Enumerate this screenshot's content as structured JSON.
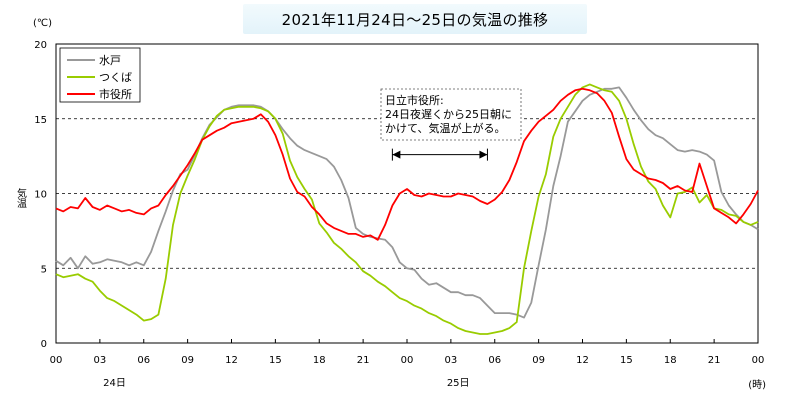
{
  "title": "2021年11月24日～25日の気温の推移",
  "chart_data": {
    "type": "line",
    "title": "2021年11月24日～25日の気温の推移",
    "ylabel": "気温",
    "yunit": "(℃)",
    "xunit": "(時)",
    "ylim": [
      0,
      20
    ],
    "yticks": [
      0,
      5,
      10,
      15,
      20
    ],
    "xlim": [
      0,
      48
    ],
    "xticks": [
      0,
      3,
      6,
      9,
      12,
      15,
      18,
      21,
      24,
      27,
      30,
      33,
      36,
      39,
      42,
      45,
      48
    ],
    "xtick_labels": [
      "00",
      "03",
      "06",
      "09",
      "12",
      "15",
      "18",
      "21",
      "00",
      "03",
      "06",
      "09",
      "12",
      "15",
      "18",
      "21",
      "00"
    ],
    "day_labels": [
      {
        "x": 4,
        "label": "24日"
      },
      {
        "x": 27.5,
        "label": "25日"
      }
    ],
    "grid": {
      "horizontal_dashed": [
        5,
        10,
        15
      ]
    },
    "legend_position": "top-left",
    "annotation": {
      "lines": [
        "日立市役所:",
        "24日夜遅くから25日朝に",
        "かけて、気温が上がる。"
      ],
      "arrow_from_x": 23,
      "arrow_to_x": 29.5,
      "arrow_y": 12.6
    },
    "series": [
      {
        "name": "水戸",
        "color": "#999999",
        "x": [
          0,
          0.5,
          1,
          1.5,
          2,
          2.5,
          3,
          3.5,
          4,
          4.5,
          5,
          5.5,
          6,
          6.5,
          7,
          7.5,
          8,
          8.5,
          9,
          9.5,
          10,
          10.5,
          11,
          11.5,
          12,
          12.5,
          13,
          13.5,
          14,
          14.5,
          15,
          15.5,
          16,
          16.5,
          17,
          17.5,
          18,
          18.5,
          19,
          19.5,
          20,
          20.5,
          21,
          21.5,
          22,
          22.5,
          23,
          23.5,
          24,
          24.5,
          25,
          25.5,
          26,
          26.5,
          27,
          27.5,
          28,
          28.5,
          29,
          29.5,
          30,
          30.5,
          31,
          31.5,
          32,
          32.5,
          33,
          33.5,
          34,
          34.5,
          35,
          35.5,
          36,
          36.5,
          37,
          37.5,
          38,
          38.5,
          39,
          39.5,
          40,
          40.5,
          41,
          41.5,
          42,
          42.5,
          43,
          43.5,
          44,
          44.5,
          45,
          45.5,
          46,
          46.5,
          47,
          47.5,
          48
        ],
        "values": [
          5.5,
          5.2,
          5.7,
          5.0,
          5.8,
          5.3,
          5.4,
          5.6,
          5.5,
          5.4,
          5.2,
          5.4,
          5.2,
          6.1,
          7.5,
          8.8,
          10.2,
          11.3,
          11.6,
          12.6,
          13.7,
          14.6,
          15.1,
          15.6,
          15.8,
          15.9,
          15.9,
          15.9,
          15.8,
          15.5,
          15.0,
          14.3,
          13.7,
          13.2,
          12.9,
          12.7,
          12.5,
          12.3,
          11.8,
          10.9,
          9.7,
          7.7,
          7.3,
          7.1,
          7.0,
          6.9,
          6.4,
          5.4,
          5.0,
          4.9,
          4.3,
          3.9,
          4.0,
          3.7,
          3.4,
          3.4,
          3.2,
          3.2,
          3.0,
          2.5,
          2.0,
          2.0,
          2.0,
          1.9,
          1.7,
          2.7,
          5.2,
          7.6,
          10.5,
          12.5,
          14.8,
          15.5,
          16.2,
          16.6,
          16.8,
          17.0,
          17.0,
          17.1,
          16.4,
          15.6,
          14.9,
          14.3,
          13.9,
          13.7,
          13.3,
          12.9,
          12.8,
          12.9,
          12.8,
          12.6,
          12.2,
          10.1,
          9.2,
          8.6,
          8.1,
          7.9,
          7.6
        ]
      },
      {
        "name": "つくば",
        "color": "#99cc00",
        "x": [
          0,
          0.5,
          1,
          1.5,
          2,
          2.5,
          3,
          3.5,
          4,
          4.5,
          5,
          5.5,
          6,
          6.5,
          7,
          7.5,
          8,
          8.5,
          9,
          9.5,
          10,
          10.5,
          11,
          11.5,
          12,
          12.5,
          13,
          13.5,
          14,
          14.5,
          15,
          15.5,
          16,
          16.5,
          17,
          17.5,
          18,
          18.5,
          19,
          19.5,
          20,
          20.5,
          21,
          21.5,
          22,
          22.5,
          23,
          23.5,
          24,
          24.5,
          25,
          25.5,
          26,
          26.5,
          27,
          27.5,
          28,
          28.5,
          29,
          29.5,
          30,
          30.5,
          31,
          31.5,
          32,
          32.5,
          33,
          33.5,
          34,
          34.5,
          35,
          35.5,
          36,
          36.5,
          37,
          37.5,
          38,
          38.5,
          39,
          39.5,
          40,
          40.5,
          41,
          41.5,
          42,
          42.5,
          43,
          43.5,
          44,
          44.5,
          45,
          45.5,
          46,
          46.5,
          47,
          47.5,
          48
        ],
        "values": [
          4.6,
          4.4,
          4.5,
          4.6,
          4.3,
          4.1,
          3.5,
          3.0,
          2.8,
          2.5,
          2.2,
          1.9,
          1.5,
          1.6,
          1.9,
          4.3,
          7.9,
          10.0,
          11.2,
          12.3,
          13.6,
          14.5,
          15.2,
          15.6,
          15.7,
          15.8,
          15.8,
          15.8,
          15.7,
          15.5,
          15.0,
          14.0,
          12.2,
          11.1,
          10.3,
          9.6,
          8.0,
          7.4,
          6.7,
          6.3,
          5.8,
          5.4,
          4.8,
          4.5,
          4.1,
          3.8,
          3.4,
          3.0,
          2.8,
          2.5,
          2.3,
          2.0,
          1.8,
          1.5,
          1.3,
          1.0,
          0.8,
          0.7,
          0.6,
          0.6,
          0.7,
          0.8,
          1.0,
          1.4,
          5.0,
          7.5,
          9.8,
          11.3,
          13.8,
          15.0,
          15.8,
          16.6,
          17.1,
          17.3,
          17.1,
          16.9,
          16.8,
          16.2,
          15.0,
          13.3,
          11.8,
          10.8,
          10.3,
          9.2,
          8.4,
          10.0,
          10.1,
          10.4,
          9.4,
          9.9,
          9.0,
          8.9,
          8.6,
          8.5,
          8.1,
          7.9,
          8.1
        ]
      },
      {
        "name": "市役所",
        "color": "#ff0000",
        "x": [
          0,
          0.5,
          1,
          1.5,
          2,
          2.5,
          3,
          3.5,
          4,
          4.5,
          5,
          5.5,
          6,
          6.5,
          7,
          7.5,
          8,
          8.5,
          9,
          9.5,
          10,
          10.5,
          11,
          11.5,
          12,
          12.5,
          13,
          13.5,
          14,
          14.5,
          15,
          15.5,
          16,
          16.5,
          17,
          17.5,
          18,
          18.5,
          19,
          19.5,
          20,
          20.5,
          21,
          21.5,
          22,
          22.5,
          23,
          23.5,
          24,
          24.5,
          25,
          25.5,
          26,
          26.5,
          27,
          27.5,
          28,
          28.5,
          29,
          29.5,
          30,
          30.5,
          31,
          31.5,
          32,
          32.5,
          33,
          33.5,
          34,
          34.5,
          35,
          35.5,
          36,
          36.5,
          37,
          37.5,
          38,
          38.5,
          39,
          39.5,
          40,
          40.5,
          41,
          41.5,
          42,
          42.5,
          43,
          43.5,
          44,
          44.5,
          45,
          45.5,
          46,
          46.5,
          47,
          47.5,
          48
        ],
        "values": [
          9.0,
          8.8,
          9.1,
          9.0,
          9.7,
          9.1,
          8.9,
          9.2,
          9.0,
          8.8,
          8.9,
          8.7,
          8.6,
          9.0,
          9.2,
          9.9,
          10.5,
          11.2,
          11.9,
          12.7,
          13.6,
          13.9,
          14.2,
          14.4,
          14.7,
          14.8,
          14.9,
          15.0,
          15.3,
          14.8,
          13.9,
          12.6,
          11.0,
          10.1,
          9.8,
          9.1,
          8.6,
          8.0,
          7.7,
          7.5,
          7.3,
          7.3,
          7.1,
          7.2,
          6.9,
          7.9,
          9.2,
          10.0,
          10.3,
          9.9,
          9.8,
          10.0,
          9.9,
          9.8,
          9.8,
          10.0,
          9.9,
          9.8,
          9.5,
          9.3,
          9.6,
          10.1,
          10.9,
          12.1,
          13.5,
          14.2,
          14.8,
          15.2,
          15.6,
          16.2,
          16.6,
          16.9,
          17.0,
          16.9,
          16.7,
          16.2,
          15.4,
          13.8,
          12.3,
          11.6,
          11.3,
          11.0,
          10.9,
          10.7,
          10.3,
          10.5,
          10.2,
          10.1,
          12.0,
          10.5,
          9.0,
          8.7,
          8.4,
          8.0,
          8.6,
          9.3,
          10.2
        ]
      }
    ]
  }
}
